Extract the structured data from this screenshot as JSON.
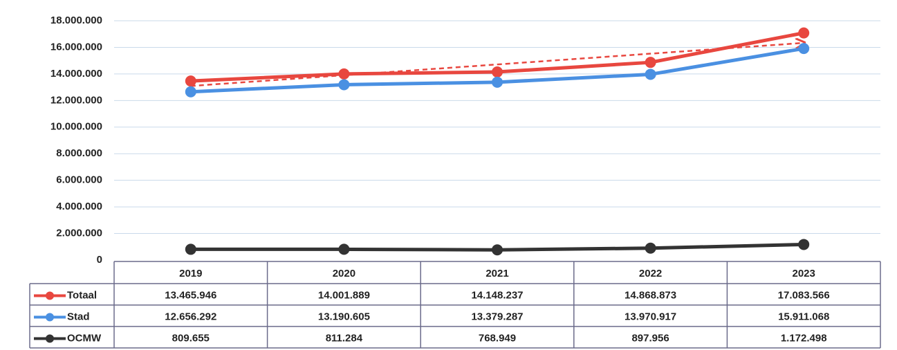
{
  "chart_data": {
    "type": "line",
    "categories": [
      "2019",
      "2020",
      "2021",
      "2022",
      "2023"
    ],
    "series": [
      {
        "name": "Totaal",
        "color": "#e8473f",
        "trendline": "linear",
        "values": [
          13465946,
          14001889,
          14148237,
          14868873,
          17083566
        ],
        "value_labels": [
          "13.465.946",
          "14.001.889",
          "14.148.237",
          "14.868.873",
          "17.083.566"
        ]
      },
      {
        "name": "Stad",
        "color": "#4a90e2",
        "values": [
          12656292,
          13190605,
          13379287,
          13970917,
          15911068
        ],
        "value_labels": [
          "12.656.292",
          "13.190.605",
          "13.379.287",
          "13.970.917",
          "15.911.068"
        ]
      },
      {
        "name": "OCMW",
        "color": "#333333",
        "values": [
          809655,
          811284,
          768949,
          897956,
          1172498
        ],
        "value_labels": [
          "809.655",
          "811.284",
          "768.949",
          "897.956",
          "1.172.498"
        ]
      }
    ],
    "ylim": [
      0,
      18000000
    ],
    "yticks": [
      0,
      {
        "value": 2000000,
        "label": "2.000.000"
      },
      {
        "value": 4000000,
        "label": "4.000.000"
      },
      {
        "value": 6000000,
        "label": "6.000.000"
      },
      {
        "value": 8000000,
        "label": "8.000.000"
      },
      {
        "value": 10000000,
        "label": "10.000.000"
      },
      {
        "value": 12000000,
        "label": "12.000.000"
      },
      {
        "value": 14000000,
        "label": "14.000.000"
      },
      {
        "value": 16000000,
        "label": "16.000.000"
      },
      {
        "value": 18000000,
        "label": "18.000.000"
      }
    ],
    "grid": true,
    "legend": "table"
  }
}
